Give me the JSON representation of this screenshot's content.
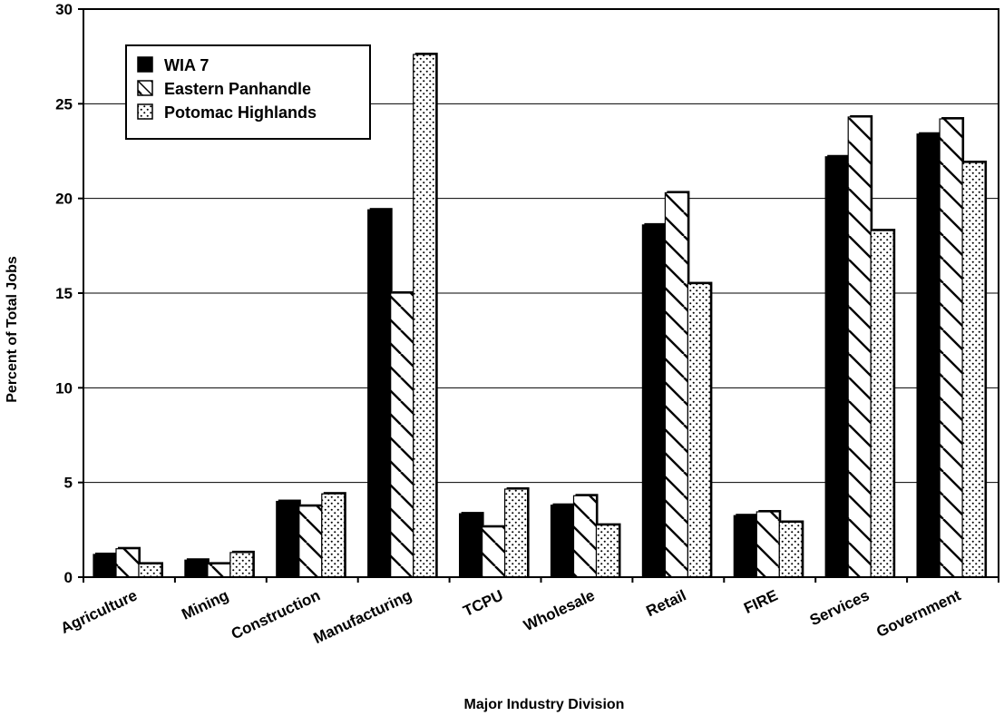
{
  "chart_data": {
    "type": "bar",
    "title": "",
    "xlabel": "Major Industry Division",
    "ylabel": "Percent of Total Jobs",
    "ylim": [
      0,
      30
    ],
    "yticks": [
      0,
      5,
      10,
      15,
      20,
      25,
      30
    ],
    "grid": true,
    "legend_position": "top-left",
    "categories": [
      "Agriculture",
      "Mining",
      "Construction",
      "Manufacturing",
      "TCPU",
      "Wholesale",
      "Retail",
      "FIRE",
      "Services",
      "Government"
    ],
    "series": [
      {
        "name": "WIA 7",
        "pattern": "solid",
        "color": "#000000",
        "values": [
          1.2,
          0.9,
          4.0,
          19.4,
          3.35,
          3.8,
          18.6,
          3.25,
          22.2,
          23.4
        ]
      },
      {
        "name": "Eastern Panhandle",
        "pattern": "diagonal-hatch",
        "color": "#000000",
        "values": [
          1.5,
          0.7,
          3.75,
          15.0,
          2.65,
          4.3,
          20.3,
          3.45,
          24.3,
          24.2
        ]
      },
      {
        "name": "Potomac Highlands",
        "pattern": "dots",
        "color": "#000000",
        "values": [
          0.7,
          1.3,
          4.4,
          27.6,
          4.65,
          2.75,
          15.5,
          2.9,
          18.3,
          21.9
        ]
      }
    ]
  }
}
